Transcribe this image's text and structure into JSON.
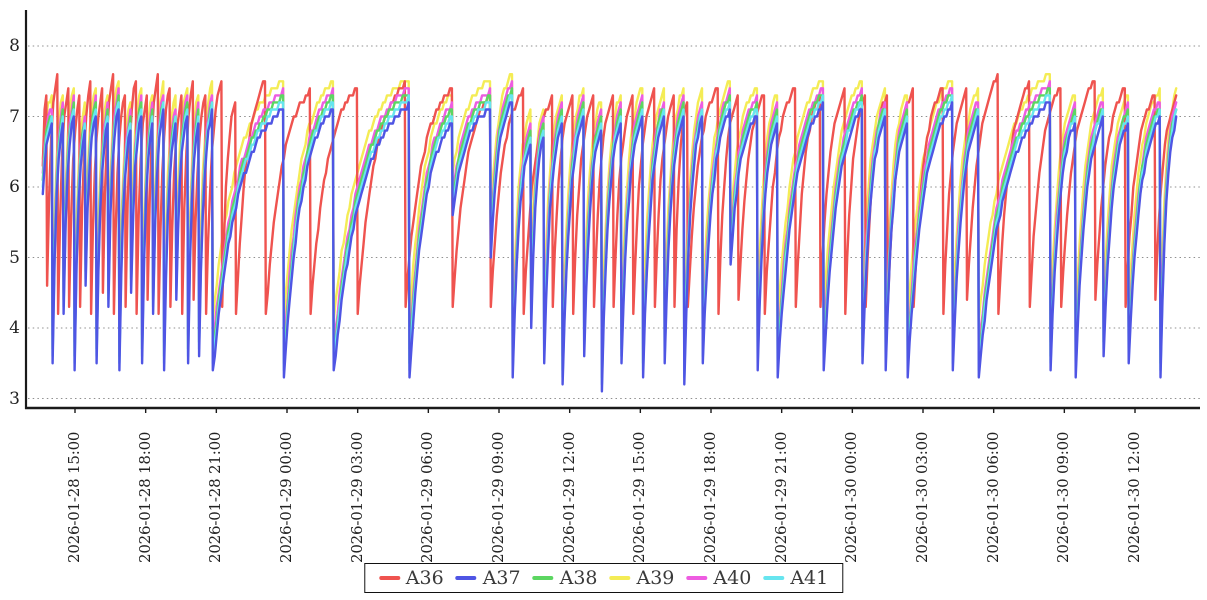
{
  "chart_data": {
    "type": "line",
    "title": "",
    "xlabel": "",
    "ylabel": "",
    "grid": "horizontal-dotted",
    "legend_position": "bottom-center",
    "ylim": [
      2.85,
      8.5
    ],
    "y_ticks": [
      8,
      7,
      6,
      5,
      4,
      3
    ],
    "x_unit": "minutes after 2026-01-28 12:00, ticks every 180 min",
    "x_tick_start_minute": 180,
    "x_tick_step_minute": 180,
    "x_ticks": [
      "2026-01-28 15:00",
      "2026-01-28 18:00",
      "2026-01-28 21:00",
      "2026-01-29 00:00",
      "2026-01-29 03:00",
      "2026-01-29 06:00",
      "2026-01-29 09:00",
      "2026-01-29 12:00",
      "2026-01-29 15:00",
      "2026-01-29 18:00",
      "2026-01-29 21:00",
      "2026-01-30 00:00",
      "2026-01-30 03:00",
      "2026-01-30 06:00",
      "2026-01-30 09:00",
      "2026-01-30 12:00"
    ],
    "waveform_note": "sawtooth: concave staircase rise to peak then sharp drop to min; events listed as [t,peak_before_drop,min_after_drop]; A37/A38/A39/A40/A41 derive from base_events via value=a*base+b; A36 has independent events",
    "base_start": [
      98,
      5.9
    ],
    "base_end": [
      2985,
      6.95
    ],
    "base_events": [
      [
        121,
        6.85,
        3.5
      ],
      [
        149,
        6.9,
        4.2
      ],
      [
        177,
        7.0,
        3.4
      ],
      [
        205,
        6.75,
        4.6
      ],
      [
        233,
        7.0,
        3.5
      ],
      [
        263,
        6.9,
        4.3
      ],
      [
        291,
        7.1,
        3.4
      ],
      [
        321,
        6.8,
        4.5
      ],
      [
        349,
        7.0,
        3.5
      ],
      [
        377,
        6.9,
        4.2
      ],
      [
        405,
        7.05,
        3.4
      ],
      [
        436,
        6.85,
        4.4
      ],
      [
        466,
        7.0,
        3.5
      ],
      [
        494,
        6.9,
        3.6
      ],
      [
        529,
        7.05,
        3.35
      ],
      [
        710,
        7.1,
        3.3
      ],
      [
        837,
        7.1,
        3.35
      ],
      [
        1030,
        7.15,
        3.3
      ],
      [
        1140,
        6.9,
        5.6
      ],
      [
        1237,
        7.1,
        5.0
      ],
      [
        1293,
        7.2,
        3.3
      ],
      [
        1340,
        6.6,
        4.0
      ],
      [
        1373,
        6.7,
        3.5
      ],
      [
        1420,
        6.9,
        3.2
      ],
      [
        1475,
        7.0,
        3.6
      ],
      [
        1520,
        6.8,
        3.1
      ],
      [
        1570,
        6.9,
        3.5
      ],
      [
        1625,
        7.0,
        3.3
      ],
      [
        1680,
        6.95,
        3.5
      ],
      [
        1730,
        7.0,
        3.2
      ],
      [
        1777,
        6.95,
        3.5
      ],
      [
        1848,
        7.1,
        4.9
      ],
      [
        1917,
        7.0,
        3.4
      ],
      [
        1968,
        6.9,
        3.3
      ],
      [
        2085,
        7.15,
        3.4
      ],
      [
        2184,
        7.1,
        3.5
      ],
      [
        2243,
        6.95,
        3.4
      ],
      [
        2299,
        6.9,
        3.3
      ],
      [
        2414,
        7.15,
        3.35
      ],
      [
        2480,
        6.95,
        3.3
      ],
      [
        2663,
        7.2,
        3.4
      ],
      [
        2727,
        6.9,
        3.3
      ],
      [
        2798,
        6.95,
        3.6
      ],
      [
        2862,
        6.9,
        3.5
      ],
      [
        2943,
        6.95,
        3.3
      ]
    ],
    "red_start": [
      98,
      6.3
    ],
    "red_end": [
      2985,
      7.25
    ],
    "red_events": [
      [
        107,
        7.3,
        4.6
      ],
      [
        135,
        7.6,
        4.2
      ],
      [
        163,
        7.4,
        4.3
      ],
      [
        191,
        7.25,
        4.25
      ],
      [
        219,
        7.45,
        4.2
      ],
      [
        249,
        7.35,
        4.5
      ],
      [
        277,
        7.6,
        4.2
      ],
      [
        307,
        7.3,
        4.3
      ],
      [
        335,
        7.55,
        4.2
      ],
      [
        363,
        7.3,
        4.4
      ],
      [
        391,
        7.6,
        4.2
      ],
      [
        421,
        7.4,
        4.3
      ],
      [
        451,
        7.25,
        4.2
      ],
      [
        480,
        7.45,
        4.4
      ],
      [
        512,
        7.3,
        4.2
      ],
      [
        553,
        7.5,
        4.3
      ],
      [
        588,
        7.2,
        4.15
      ],
      [
        664,
        7.5,
        4.15
      ],
      [
        778,
        7.35,
        4.2
      ],
      [
        898,
        7.4,
        4.2
      ],
      [
        1020,
        7.45,
        4.3
      ],
      [
        1140,
        7.4,
        4.3
      ],
      [
        1237,
        7.3,
        4.3
      ],
      [
        1321,
        7.35,
        4.2
      ],
      [
        1395,
        7.25,
        4.3
      ],
      [
        1447,
        7.3,
        4.2
      ],
      [
        1500,
        7.25,
        4.25
      ],
      [
        1550,
        7.3,
        4.3
      ],
      [
        1600,
        7.25,
        4.2
      ],
      [
        1655,
        7.35,
        4.3
      ],
      [
        1705,
        7.25,
        4.25
      ],
      [
        1739,
        7.2,
        4.3
      ],
      [
        1817,
        7.4,
        4.2
      ],
      [
        1868,
        7.3,
        4.35
      ],
      [
        1935,
        7.3,
        4.2
      ],
      [
        2014,
        7.4,
        4.25
      ],
      [
        2077,
        7.3,
        4.3
      ],
      [
        2140,
        7.35,
        4.2
      ],
      [
        2192,
        7.25,
        4.3
      ],
      [
        2248,
        7.3,
        4.25
      ],
      [
        2314,
        7.35,
        4.3
      ],
      [
        2390,
        7.4,
        4.2
      ],
      [
        2450,
        7.35,
        4.35
      ],
      [
        2530,
        7.55,
        4.2
      ],
      [
        2610,
        7.45,
        4.3
      ],
      [
        2690,
        7.4,
        4.25
      ],
      [
        2777,
        7.5,
        4.35
      ],
      [
        2854,
        7.4,
        4.3
      ],
      [
        2930,
        7.3,
        4.4
      ]
    ],
    "series": [
      {
        "name": "A36",
        "color": "#ef534f",
        "mode": "red",
        "a": 1.0,
        "b": 0.0
      },
      {
        "name": "A37",
        "color": "#4f55e4",
        "mode": "base",
        "a": 1.0,
        "b": 0.0
      },
      {
        "name": "A38",
        "color": "#5cd661",
        "mode": "base",
        "a": 0.989,
        "b": 0.26
      },
      {
        "name": "A39",
        "color": "#f4ec55",
        "mode": "base",
        "a": 0.895,
        "b": 1.15
      },
      {
        "name": "A40",
        "color": "#ee5ce1",
        "mode": "base",
        "a": 0.973,
        "b": 0.45
      },
      {
        "name": "A41",
        "color": "#67e5ef",
        "mode": "base",
        "a": 0.995,
        "b": 0.14
      }
    ],
    "paint_order": [
      "A39",
      "A36",
      "A40",
      "A38",
      "A41",
      "A37"
    ],
    "colors": {
      "grid": "#8f8f8f",
      "axis": "#1a1a1a",
      "tick_text": "#222222",
      "legend_border": "#111111",
      "legend_text": "#3a3a3a",
      "background": "#ffffff"
    }
  },
  "legend": {
    "items": [
      {
        "label": "A36",
        "color": "#ef534f"
      },
      {
        "label": "A37",
        "color": "#4f55e4"
      },
      {
        "label": "A38",
        "color": "#5cd661"
      },
      {
        "label": "A39",
        "color": "#f4ec55"
      },
      {
        "label": "A40",
        "color": "#ee5ce1"
      },
      {
        "label": "A41",
        "color": "#67e5ef"
      }
    ]
  }
}
